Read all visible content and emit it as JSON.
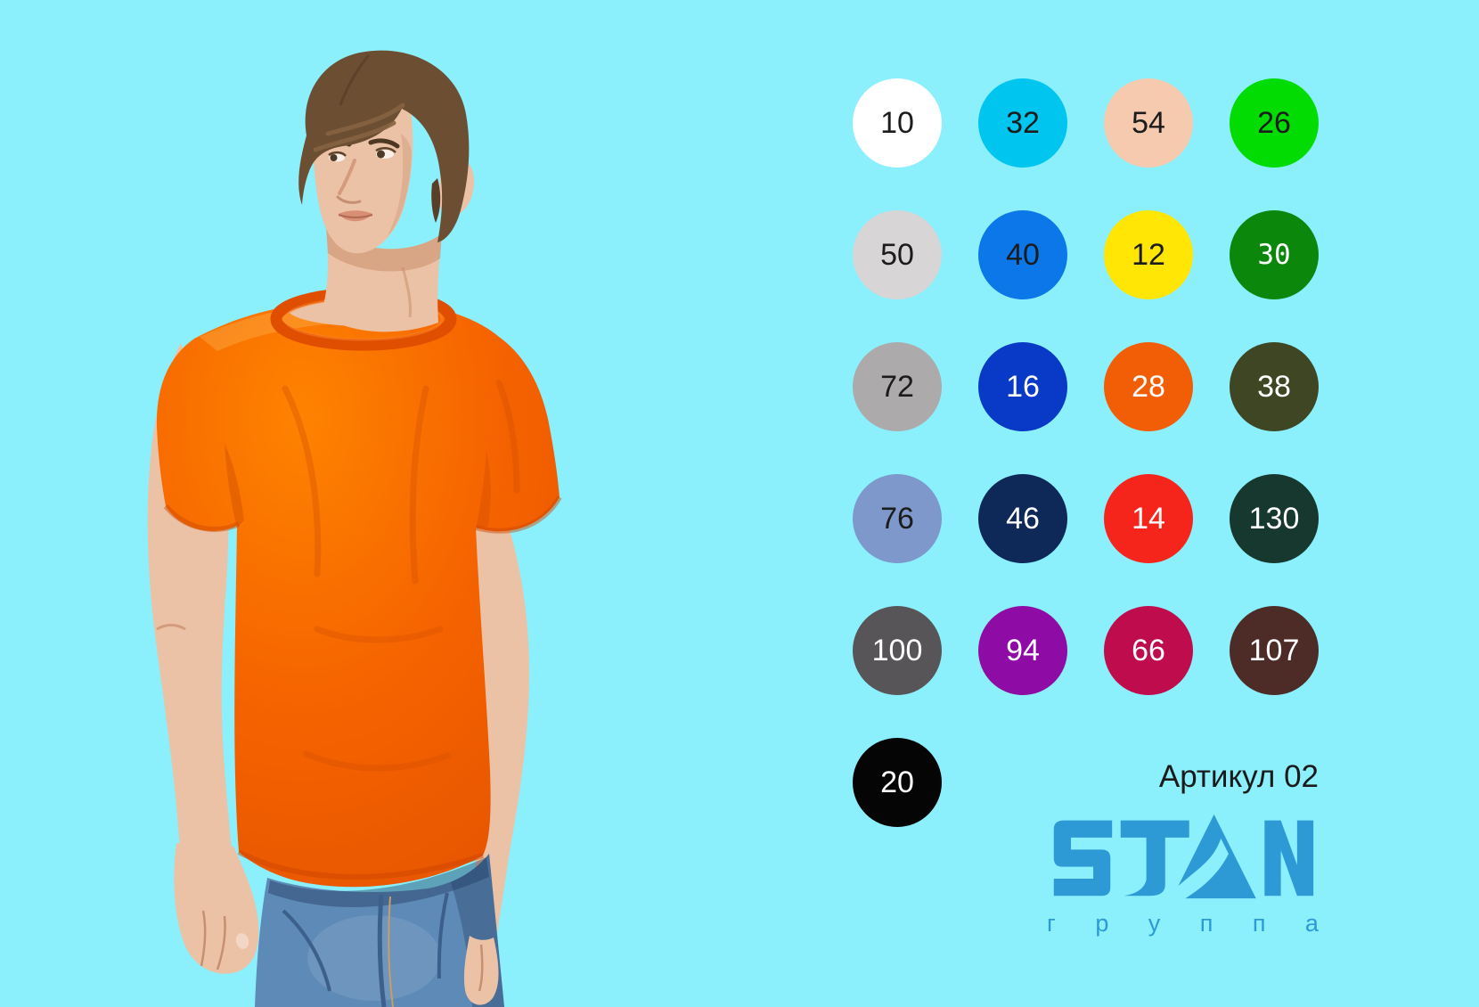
{
  "palette": {
    "background": "#8BEFFC",
    "brand": "#2D9AD6",
    "ink": "#1B1B1B",
    "shirt": "#F66300",
    "jeans": "#5E8AB7",
    "skin": "#ECC2A6",
    "hair": "#6C4E33"
  },
  "swatches": [
    {
      "code": "10",
      "fill": "#FFFFFF",
      "text": "#1C1C1C",
      "mono": false
    },
    {
      "code": "32",
      "fill": "#00C6EF",
      "text": "#1C1C1C",
      "mono": false
    },
    {
      "code": "54",
      "fill": "#F6CAAF",
      "text": "#1C1C1C",
      "mono": false
    },
    {
      "code": "26",
      "fill": "#03DC03",
      "text": "#1C1C1C",
      "mono": false
    },
    {
      "code": "50",
      "fill": "#D7D5D5",
      "text": "#1C1C1C",
      "mono": false
    },
    {
      "code": "40",
      "fill": "#0B77E9",
      "text": "#1C1C1C",
      "mono": false
    },
    {
      "code": "12",
      "fill": "#FFE605",
      "text": "#1C1C1C",
      "mono": false
    },
    {
      "code": "30",
      "fill": "#0B870B",
      "text": "#FFFFFF",
      "mono": true
    },
    {
      "code": "72",
      "fill": "#ADAAAB",
      "text": "#1C1C1C",
      "mono": false
    },
    {
      "code": "16",
      "fill": "#0839C7",
      "text": "#FFFFFF",
      "mono": false
    },
    {
      "code": "28",
      "fill": "#F15E06",
      "text": "#FFFFFF",
      "mono": false
    },
    {
      "code": "38",
      "fill": "#3F4624",
      "text": "#FFFFFF",
      "mono": false
    },
    {
      "code": "76",
      "fill": "#7E98CB",
      "text": "#1C1C1C",
      "mono": false
    },
    {
      "code": "46",
      "fill": "#0E2857",
      "text": "#FFFFFF",
      "mono": false
    },
    {
      "code": "14",
      "fill": "#F6251B",
      "text": "#FFFFFF",
      "mono": false
    },
    {
      "code": "130",
      "fill": "#17382E",
      "text": "#FFFFFF",
      "mono": false
    },
    {
      "code": "100",
      "fill": "#585558",
      "text": "#FFFFFF",
      "mono": false
    },
    {
      "code": "94",
      "fill": "#8E0BA6",
      "text": "#FFFFFF",
      "mono": false
    },
    {
      "code": "66",
      "fill": "#BE0C4C",
      "text": "#FFFFFF",
      "mono": false
    },
    {
      "code": "107",
      "fill": "#4D2C28",
      "text": "#FFFFFF",
      "mono": false
    },
    {
      "code": "20",
      "fill": "#050505",
      "text": "#FFFFFF",
      "mono": false
    }
  ],
  "article": {
    "label": "Артикул 02"
  },
  "brand": {
    "name": "STAN",
    "subtitle": "группа"
  }
}
